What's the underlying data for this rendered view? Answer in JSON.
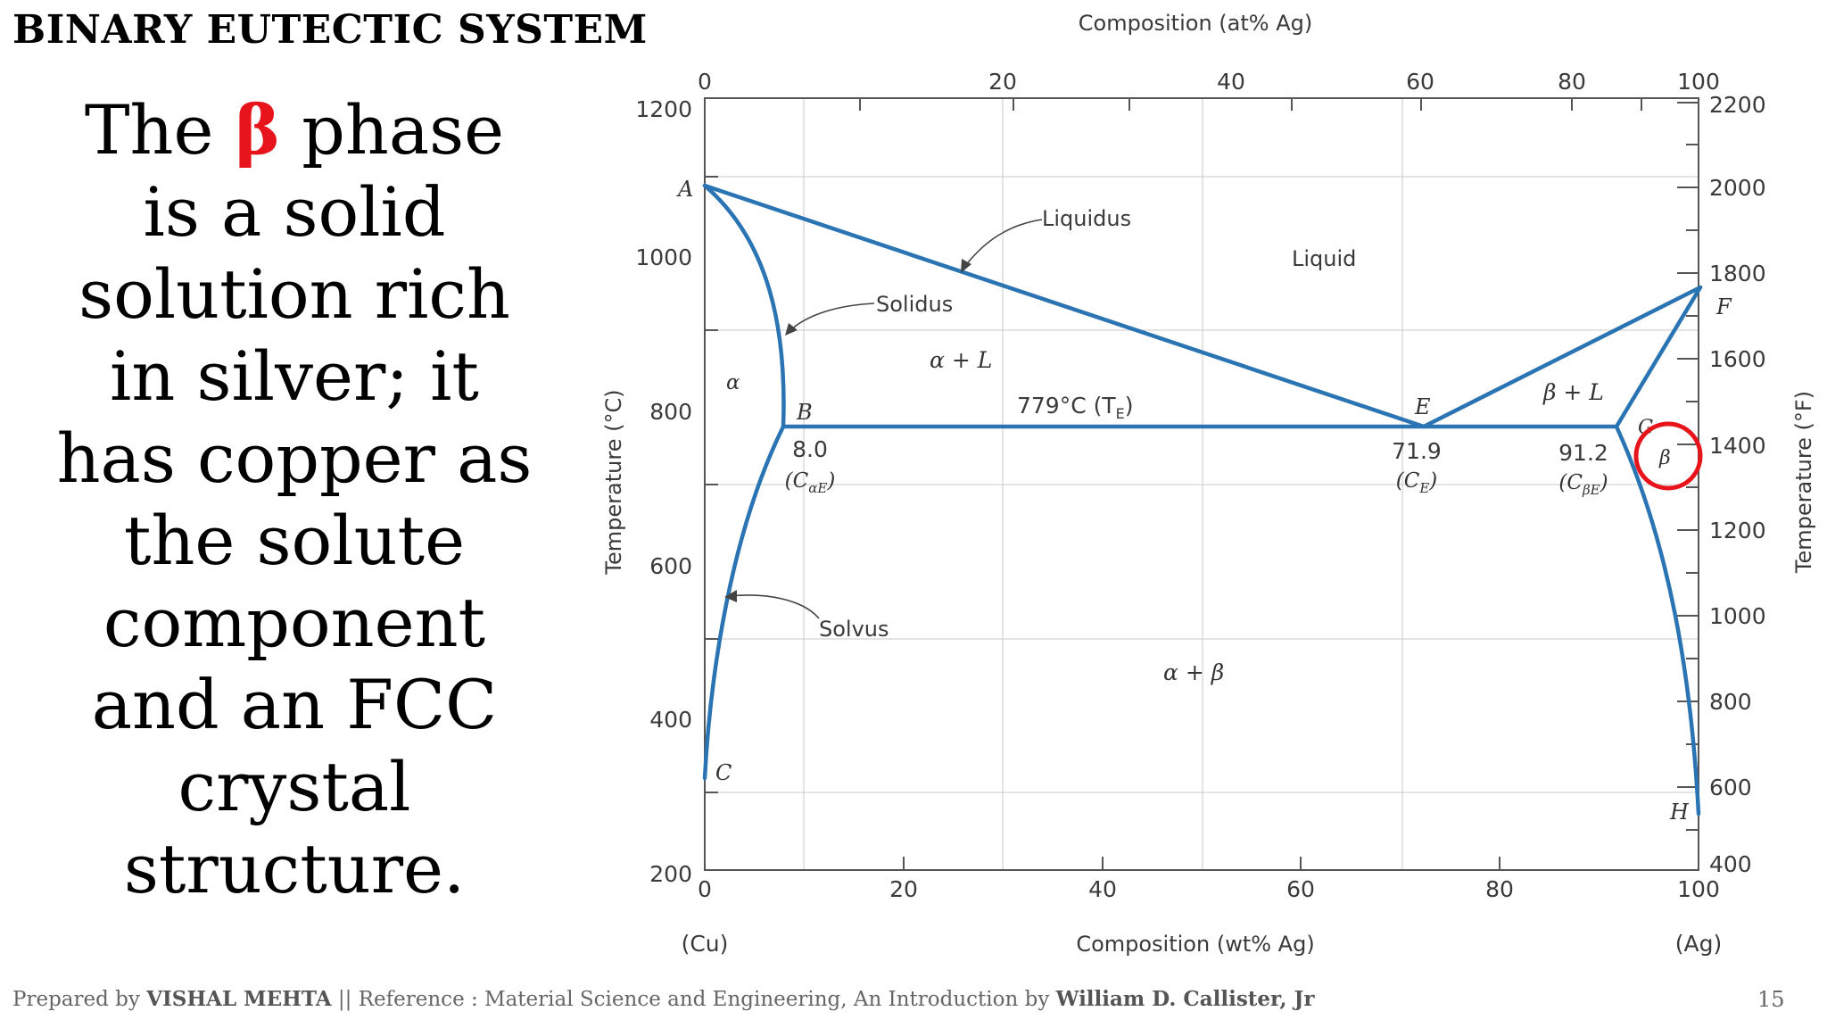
{
  "slide": {
    "title": "BINARY EUTECTIC SYSTEM",
    "text_prefix": "The ",
    "text_symbol": "β",
    "text_rest": " phase is a solid solution rich in silver; it has copper as the solute component and an FCC crystal structure.",
    "highlight_color": "#e8141c",
    "page_number": "15",
    "footer": {
      "prefix": "Prepared by ",
      "author": "VISHAL MEHTA",
      "middle": " || Reference : Material Science and Engineering, An Introduction by ",
      "reference_author": "William D. Callister, Jr"
    }
  },
  "diagram": {
    "top_axis_title": "Composition (at% Ag)",
    "top_ticks": [
      "0",
      "20",
      "40",
      "60",
      "80",
      "100"
    ],
    "bottom_axis_title": "Composition (wt% Ag)",
    "bottom_ticks": [
      "0",
      "20",
      "40",
      "60",
      "80",
      "100"
    ],
    "left_axis_title": "Temperature (°C)",
    "left_ticks": [
      "1200",
      "1000",
      "800",
      "600",
      "400",
      "200"
    ],
    "right_axis_title": "Temperature (°F)",
    "right_ticks": [
      "2200",
      "2000",
      "1800",
      "1600",
      "1400",
      "1200",
      "1000",
      "800",
      "600",
      "400"
    ],
    "endpoint_left": "(Cu)",
    "endpoint_right": "(Ag)",
    "line_color": "#2a74b3",
    "highlight_circle_color": "#e8141c",
    "labels": {
      "liquidus": "Liquidus",
      "solidus": "Solidus",
      "solvus": "Solvus",
      "liquid": "Liquid",
      "alpha": "α",
      "alpha_L": "α + L",
      "beta_L": "β + L",
      "alpha_beta": "α + β",
      "beta": "β",
      "eutectic_temp": "779°C (T",
      "eutectic_temp_sub": "E",
      "eutectic_temp_close": ")",
      "point_A": "A",
      "point_B": "B",
      "point_C": "C",
      "point_E": "E",
      "point_F": "F",
      "point_G": "G",
      "point_H": "H",
      "c_alpha_value": "8.0",
      "c_alpha_label": "(C",
      "c_alpha_sub": "αE",
      "c_alpha_close": ")",
      "ce_value": "71.9",
      "ce_label": "(C",
      "ce_sub": "E",
      "ce_close": ")",
      "c_beta_value": "91.2",
      "c_beta_label": "(C",
      "c_beta_sub": "βE",
      "c_beta_close": ")"
    }
  },
  "chart_data": {
    "type": "line",
    "title": "",
    "xlabel": "Composition (wt% Ag)",
    "ylabel": "Temperature (°C)",
    "xlim": [
      0,
      100
    ],
    "ylim": [
      200,
      1200
    ],
    "series": [
      {
        "name": "Liquidus",
        "x": [
          0,
          71.9,
          100
        ],
        "y": [
          1085,
          779,
          962
        ]
      },
      {
        "name": "Solidus",
        "x": [
          0,
          8.0
        ],
        "y": [
          1085,
          779
        ]
      },
      {
        "name": "Solidus",
        "x": [
          91.2,
          100
        ],
        "y": [
          779,
          962
        ]
      },
      {
        "name": "Solvus",
        "x": [
          8.0,
          0
        ],
        "y": [
          779,
          320
        ]
      },
      {
        "name": "Solvus",
        "x": [
          91.2,
          100
        ],
        "y": [
          779,
          275
        ]
      },
      {
        "name": "779°C (TE)",
        "x": [
          8.0,
          91.2
        ],
        "y": [
          779,
          779
        ]
      }
    ]
  }
}
